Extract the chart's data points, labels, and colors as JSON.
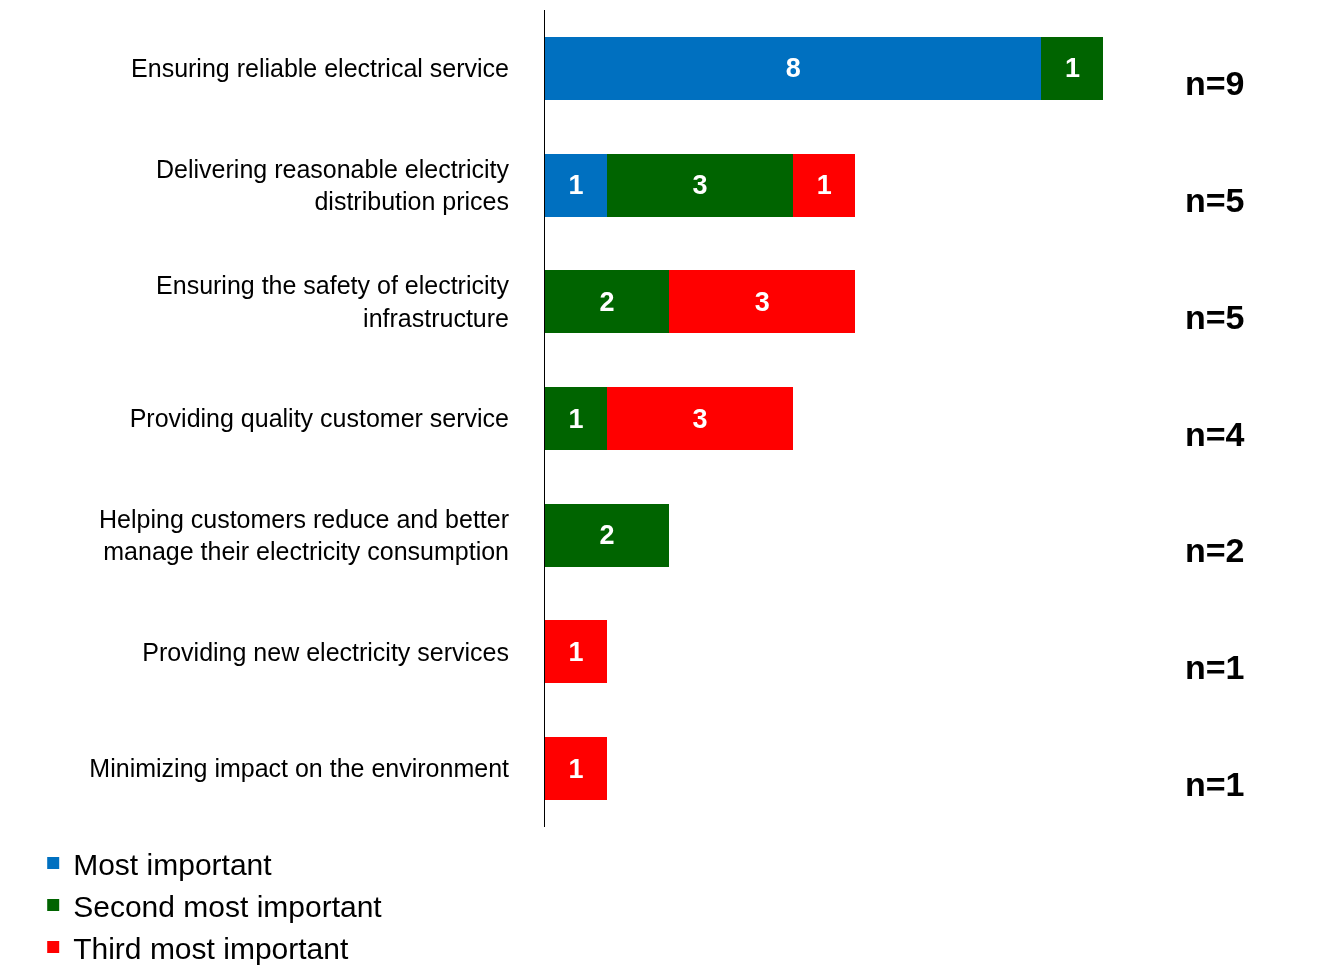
{
  "chart_data": {
    "type": "bar",
    "orientation": "horizontal",
    "stacked": true,
    "categories": [
      "Ensuring reliable electrical service",
      "Delivering reasonable electricity\ndistribution prices",
      "Ensuring the safety of electricity\ninfrastructure",
      "Providing quality customer service",
      "Helping customers reduce and better\nmanage their electricity consumption",
      "Providing new electricity services",
      "Minimizing impact on the environment"
    ],
    "series": [
      {
        "name": "Most important",
        "color": "#0070c0",
        "values": [
          8,
          1,
          null,
          null,
          null,
          null,
          null
        ]
      },
      {
        "name": "Second most important",
        "color": "#006400",
        "values": [
          1,
          3,
          2,
          1,
          2,
          null,
          null
        ]
      },
      {
        "name": "Third most important",
        "color": "#ff0000",
        "values": [
          null,
          1,
          3,
          3,
          null,
          1,
          1
        ]
      }
    ],
    "data_labels": true,
    "annotations": [
      "n=9",
      "n=5",
      "n=5",
      "n=4",
      "n=2",
      "n=1",
      "n=1"
    ],
    "legend": "bottom"
  }
}
